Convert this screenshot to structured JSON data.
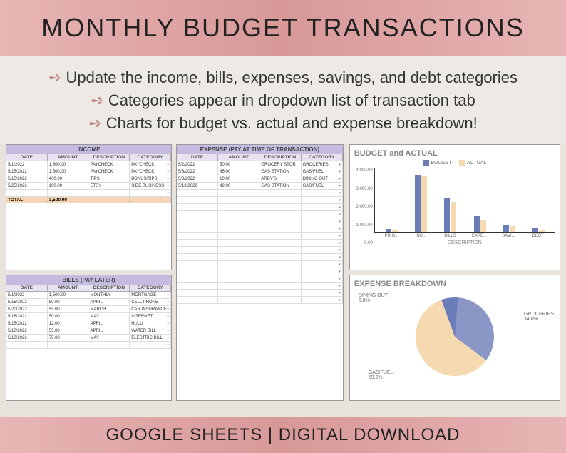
{
  "title": "MONTHLY BUDGET TRANSACTIONS",
  "bullets": [
    "Update the income, bills, expenses, savings, and debt categories",
    "Categories appear in dropdown list of transaction tab",
    "Charts for budget vs. actual and expense breakdown!"
  ],
  "income": {
    "title": "INCOME",
    "columns": [
      "DATE",
      "AMOUNT",
      "DESCRIPTION",
      "CATEGORY"
    ],
    "rows": [
      [
        "5/1/2022",
        "1,500.00",
        "PAYCHECK",
        "PAYCHECK"
      ],
      [
        "5/15/2022",
        "1,500.00",
        "PAYCHECK",
        "PAYCHECK"
      ],
      [
        "5/15/2022",
        "400.00",
        "TIPS",
        "BONUS/TIPS"
      ],
      [
        "5/25/2022",
        "100.00",
        "ETSY",
        "SIDE BUSINESS"
      ]
    ],
    "empty_rows": 1,
    "total_label": "TOTAL",
    "total_value": "3,500.00"
  },
  "bills": {
    "title": "BILLS (PAY LATER)",
    "columns": [
      "DATE",
      "AMOUNT",
      "DESCRIPTION",
      "CATEGORY"
    ],
    "rows": [
      [
        "5/1/2022",
        "1,500.00",
        "MONTHLY",
        "MORTGAGE"
      ],
      [
        "5/15/2022",
        "50.00",
        "APRIL",
        "CELL PHONE"
      ],
      [
        "5/20/2022",
        "55.00",
        "MARCH",
        "CAR INSURANCE"
      ],
      [
        "5/16/2022",
        "50.00",
        "MAY",
        "INTERNET"
      ],
      [
        "5/15/2022",
        "12.00",
        "APRIL",
        "HULU"
      ],
      [
        "5/10/2022",
        "55.00",
        "APRIL",
        "WATER BILL"
      ],
      [
        "5/10/2022",
        "75.00",
        "MAY",
        "ELECTRIC BILL"
      ]
    ],
    "empty_rows": 1
  },
  "expense": {
    "title": "EXPENSE (PAY AT TIME OF TRANSACTION)",
    "columns": [
      "DATE",
      "AMOUNT",
      "DESCRIPTION",
      "CATEGORY"
    ],
    "rows": [
      [
        "5/2/2022",
        "50.00",
        "GROCERY STOR",
        "GROCERIES"
      ],
      [
        "5/3/2022",
        "45.00",
        "GAS STATION",
        "GAS/FUEL"
      ],
      [
        "5/3/2022",
        "10.00",
        "ARBY'S",
        "DINING OUT"
      ],
      [
        "5/13/2022",
        "42.00",
        "GAS STATION",
        "GAS/FUEL"
      ]
    ],
    "empty_rows": 16
  },
  "bar_chart": {
    "title": "BUDGET and ACTUAL",
    "legend": [
      {
        "label": "BUDGET",
        "color": "#6b7db8"
      },
      {
        "label": "ACTUAL",
        "color": "#f5d9b0"
      }
    ],
    "y_max": 4000,
    "y_ticks": [
      "4,000.00",
      "3,000.00",
      "2,000.00",
      "1,000.00",
      "0.00"
    ],
    "categories": [
      "PRIO...",
      "INC...",
      "BILLS",
      "EXPE...",
      "SAVI...",
      "DEBT"
    ],
    "budget": [
      200,
      3600,
      2100,
      1000,
      400,
      250
    ],
    "actual": [
      150,
      3500,
      1900,
      700,
      350,
      150
    ],
    "x_axis_label": "DESCRIPTION"
  },
  "pie_chart": {
    "title": "EXPENSE BREAKDOWN",
    "slices": [
      {
        "label": "DINING OUT",
        "pct": "6.8%",
        "value": 6.8,
        "color": "#6b7db8"
      },
      {
        "label": "GROCERIES",
        "pct": "34.0%",
        "value": 34.0,
        "color": "#8a96c5"
      },
      {
        "label": "GAS/FUEL",
        "pct": "59.2%",
        "value": 59.2,
        "color": "#f5d9b0"
      }
    ]
  },
  "footer": "GOOGLE SHEETS  |  DIGITAL DOWNLOAD"
}
